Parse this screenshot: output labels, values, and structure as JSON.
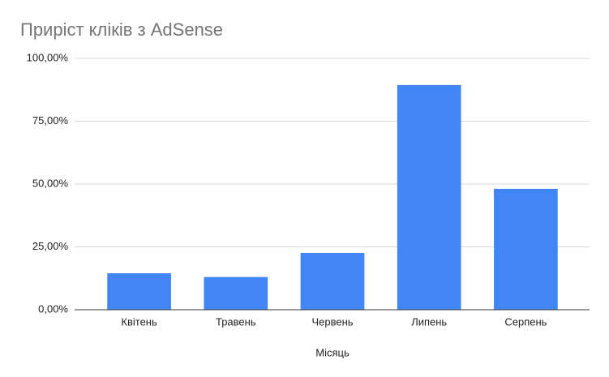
{
  "chart_data": {
    "type": "bar",
    "title": "Приріст кліків з AdSense",
    "x_label": "Місяць",
    "categories": [
      "Квітень",
      "Травень",
      "Червень",
      "Липень",
      "Серпень"
    ],
    "values": [
      14.5,
      13,
      22.6,
      89.4,
      48.1
    ],
    "color": "#4285f4",
    "ylim": [
      0,
      100
    ],
    "yticks": [
      {
        "value": 0,
        "label": "0,00%"
      },
      {
        "value": 25,
        "label": "25,00%"
      },
      {
        "value": 50,
        "label": "50,00%"
      },
      {
        "value": 75,
        "label": "75,00%"
      },
      {
        "value": 100,
        "label": "100,00%"
      }
    ],
    "grid": true
  }
}
